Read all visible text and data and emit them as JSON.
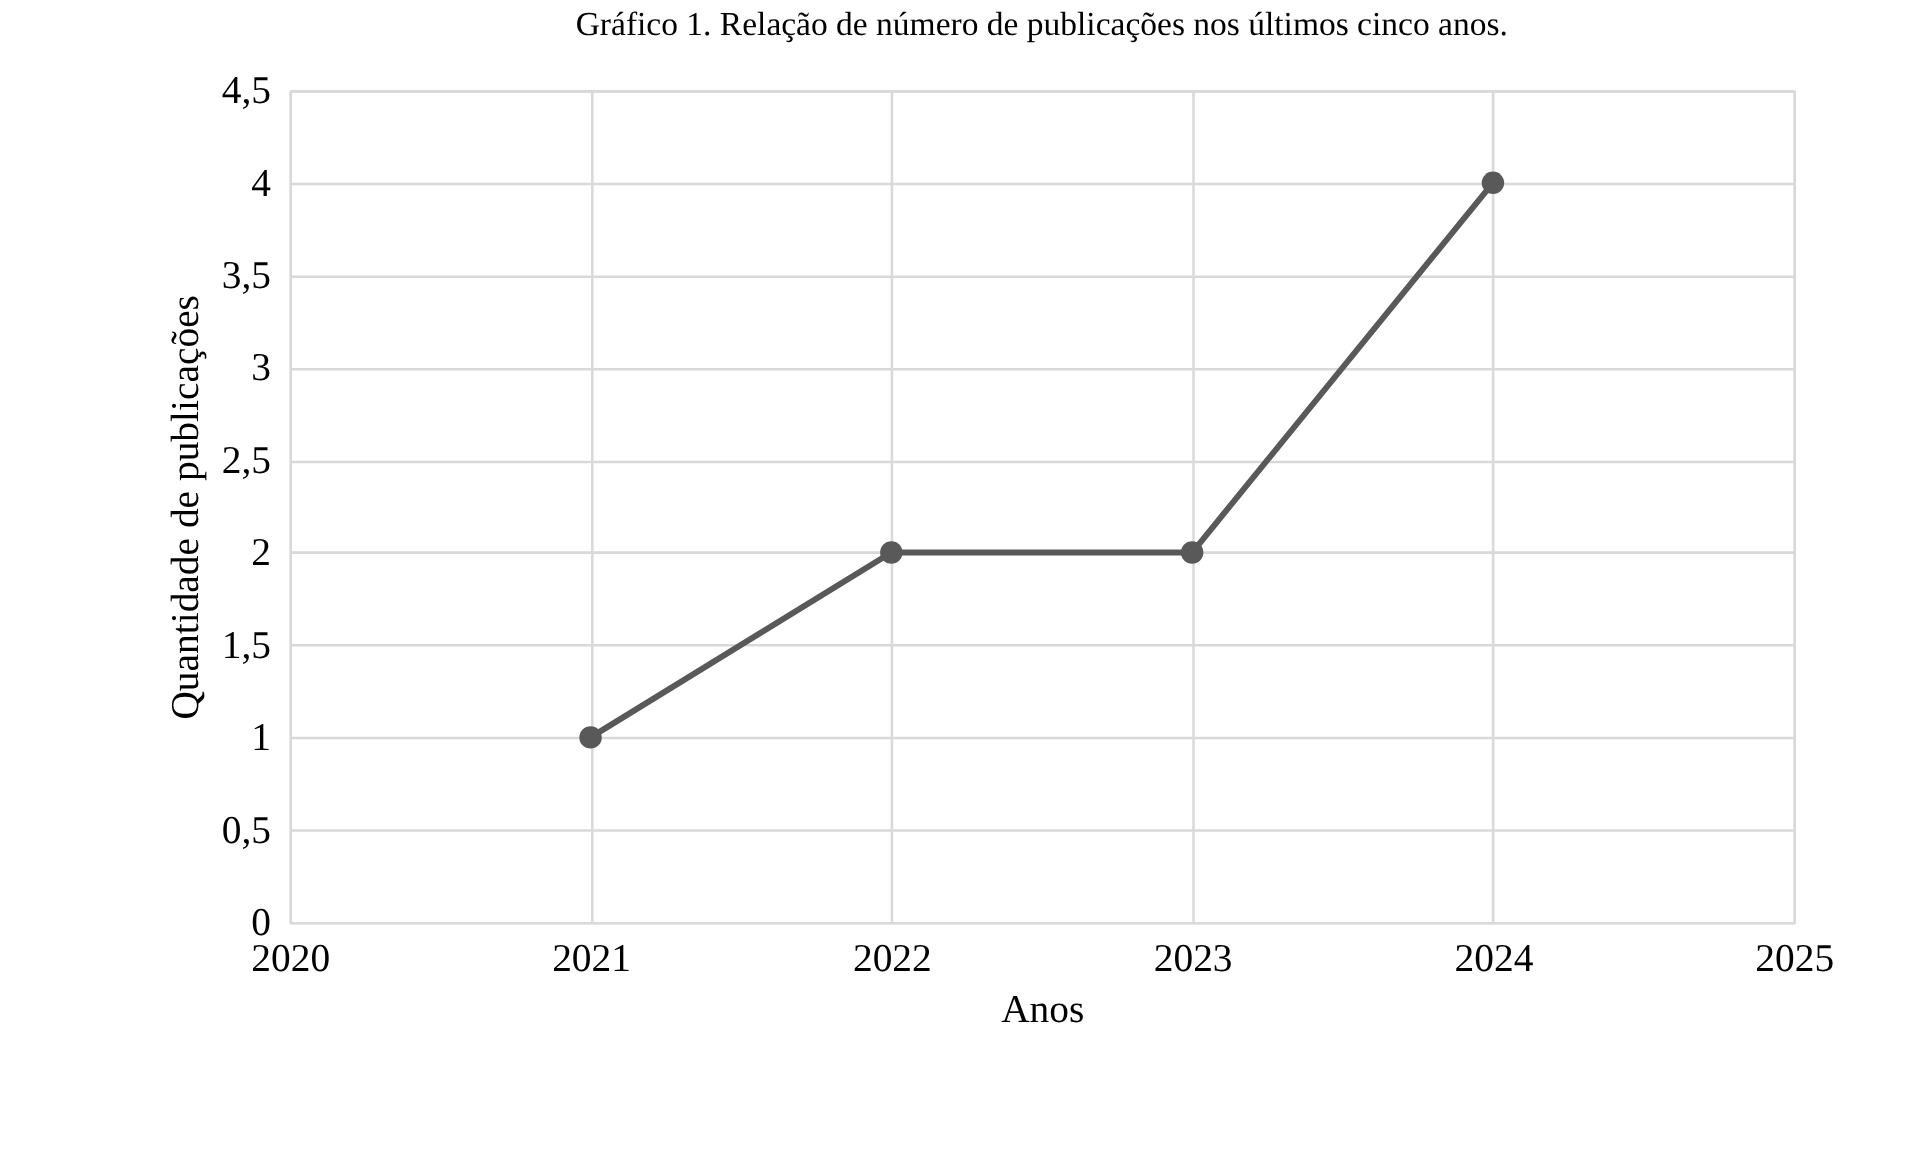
{
  "chart_data": {
    "type": "line",
    "title": "Gráfico 1. Relação de número de publicações nos últimos cinco anos.",
    "xlabel": "Anos",
    "ylabel": "Quantidade de publicações",
    "x": [
      2021,
      2022,
      2023,
      2024
    ],
    "series": [
      {
        "color": "#595959",
        "values": [
          1,
          2,
          2,
          4
        ]
      }
    ],
    "xlim": [
      2020,
      2025
    ],
    "xticks": [
      2020,
      2021,
      2022,
      2023,
      2024,
      2025
    ],
    "ylim": [
      0,
      4.5
    ],
    "yticks": [
      0,
      {
        "value": 0.5,
        "label": "0,5"
      },
      1,
      {
        "value": 1.5,
        "label": "1,5"
      },
      2,
      {
        "value": 2.5,
        "label": "2,5"
      },
      3,
      {
        "value": 3.5,
        "label": "3,5"
      },
      4,
      {
        "value": 4.5,
        "label": "4,5"
      }
    ],
    "grid": true,
    "marker": "circle",
    "line_style": "solid"
  }
}
